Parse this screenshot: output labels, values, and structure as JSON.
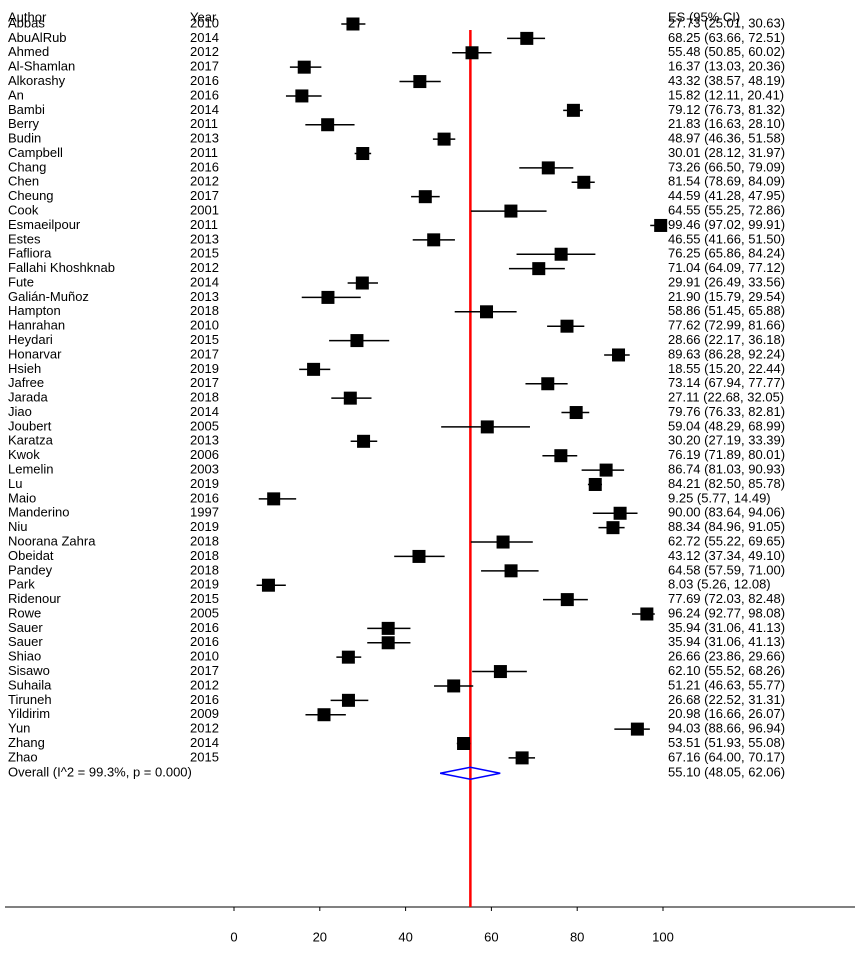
{
  "chart_data": {
    "type": "forest",
    "headers": {
      "author": "Author",
      "year": "Year",
      "es": "ES (95% CI)"
    },
    "categories": [
      "Abbas",
      "AbuAlRub",
      "Ahmed",
      "Al-Shamlan",
      "Alkorashy",
      "An",
      "Bambi",
      "Berry",
      "Budin",
      "Campbell",
      "Chang",
      "Chen",
      "Cheung",
      "Cook",
      "Esmaeilpour",
      "Estes",
      "Fafliora",
      "Fallahi Khoshknab",
      "Fute",
      "Galián-Muñoz",
      "Hampton",
      "Hanrahan",
      "Heydari",
      "Honarvar",
      "Hsieh",
      "Jafree",
      "Jarada",
      "Jiao",
      "Joubert",
      "Karatza",
      "Kwok",
      "Lemelin",
      "Lu",
      "Maio",
      "Manderino",
      "Niu",
      "Noorana Zahra",
      "Obeidat",
      "Pandey",
      "Park",
      "Ridenour",
      "Rowe",
      "Sauer",
      "Sauer",
      "Shiao",
      "Sisawo",
      "Suhaila",
      "Tiruneh",
      "Yildirim",
      "Yun",
      "Zhang",
      "Zhao"
    ],
    "years": [
      2010,
      2014,
      2012,
      2017,
      2016,
      2016,
      2014,
      2011,
      2013,
      2011,
      2016,
      2012,
      2017,
      2001,
      2011,
      2013,
      2015,
      2012,
      2014,
      2013,
      2018,
      2010,
      2015,
      2017,
      2019,
      2017,
      2018,
      2014,
      2005,
      2013,
      2006,
      2003,
      2019,
      2016,
      1997,
      2019,
      2018,
      2018,
      2018,
      2019,
      2015,
      2005,
      2016,
      2016,
      2010,
      2017,
      2012,
      2016,
      2009,
      2012,
      2014,
      2015
    ],
    "values": [
      27.73,
      68.25,
      55.48,
      16.37,
      43.32,
      15.82,
      79.12,
      21.83,
      48.97,
      30.01,
      73.26,
      81.54,
      44.59,
      64.55,
      99.46,
      46.55,
      76.25,
      71.04,
      29.91,
      21.9,
      58.86,
      77.62,
      28.66,
      89.63,
      18.55,
      73.14,
      27.11,
      79.76,
      59.04,
      30.2,
      76.19,
      86.74,
      84.21,
      9.25,
      90.0,
      88.34,
      62.72,
      43.12,
      64.58,
      8.03,
      77.69,
      96.24,
      35.94,
      35.94,
      26.66,
      62.1,
      51.21,
      26.68,
      20.98,
      94.03,
      53.51,
      67.16
    ],
    "lower": [
      25.01,
      63.66,
      50.85,
      13.03,
      38.57,
      12.11,
      76.73,
      16.63,
      46.36,
      28.12,
      66.5,
      78.69,
      41.28,
      55.25,
      97.02,
      41.66,
      65.86,
      64.09,
      26.49,
      15.79,
      51.45,
      72.99,
      22.17,
      86.28,
      15.2,
      67.94,
      22.68,
      76.33,
      48.29,
      27.19,
      71.89,
      81.03,
      82.5,
      5.77,
      83.64,
      84.96,
      55.22,
      37.34,
      57.59,
      5.26,
      72.03,
      92.77,
      31.06,
      31.06,
      23.86,
      55.52,
      46.63,
      22.52,
      16.66,
      88.66,
      51.93,
      64.0
    ],
    "upper": [
      30.63,
      72.51,
      60.02,
      20.36,
      48.19,
      20.41,
      81.32,
      28.1,
      51.58,
      31.97,
      79.09,
      84.09,
      47.95,
      72.86,
      99.91,
      51.5,
      84.24,
      77.12,
      33.56,
      29.54,
      65.88,
      81.66,
      36.18,
      92.24,
      22.44,
      77.77,
      32.05,
      82.81,
      68.99,
      33.39,
      80.01,
      90.93,
      85.78,
      14.49,
      94.06,
      91.05,
      69.65,
      49.1,
      71.0,
      12.08,
      82.48,
      98.08,
      41.13,
      41.13,
      29.66,
      68.26,
      55.77,
      31.31,
      26.07,
      96.94,
      55.08,
      70.17
    ],
    "value_labels": [
      "27.73 (25.01, 30.63)",
      "68.25 (63.66, 72.51)",
      "55.48 (50.85, 60.02)",
      "16.37 (13.03, 20.36)",
      "43.32 (38.57, 48.19)",
      "15.82 (12.11, 20.41)",
      "79.12 (76.73, 81.32)",
      "21.83 (16.63, 28.10)",
      "48.97 (46.36, 51.58)",
      "30.01 (28.12, 31.97)",
      "73.26 (66.50, 79.09)",
      "81.54 (78.69, 84.09)",
      "44.59 (41.28, 47.95)",
      "64.55 (55.25, 72.86)",
      "99.46 (97.02, 99.91)",
      "46.55 (41.66, 51.50)",
      "76.25 (65.86, 84.24)",
      "71.04 (64.09, 77.12)",
      "29.91 (26.49, 33.56)",
      "21.90 (15.79, 29.54)",
      "58.86 (51.45, 65.88)",
      "77.62 (72.99, 81.66)",
      "28.66 (22.17, 36.18)",
      "89.63 (86.28, 92.24)",
      "18.55 (15.20, 22.44)",
      "73.14 (67.94, 77.77)",
      "27.11 (22.68, 32.05)",
      "79.76 (76.33, 82.81)",
      "59.04 (48.29, 68.99)",
      "30.20 (27.19, 33.39)",
      "76.19 (71.89, 80.01)",
      "86.74 (81.03, 90.93)",
      "84.21 (82.50, 85.78)",
      "9.25 (5.77, 14.49)",
      "90.00 (83.64, 94.06)",
      "88.34 (84.96, 91.05)",
      "62.72 (55.22, 69.65)",
      "43.12 (37.34, 49.10)",
      "64.58 (57.59, 71.00)",
      "8.03 (5.26, 12.08)",
      "77.69 (72.03, 82.48)",
      "96.24 (92.77, 98.08)",
      "35.94 (31.06, 41.13)",
      "35.94 (31.06, 41.13)",
      "26.66 (23.86, 29.66)",
      "62.10 (55.52, 68.26)",
      "51.21 (46.63, 55.77)",
      "26.68 (22.52, 31.31)",
      "20.98 (16.66, 26.07)",
      "94.03 (88.66, 96.94)",
      "53.51 (51.93, 55.08)",
      "67.16 (64.00, 70.17)"
    ],
    "overall": {
      "label": "Overall  (I^2 = 99.3%, p = 0.000)",
      "value": 55.1,
      "lower": 48.05,
      "upper": 62.06,
      "value_label": "55.10 (48.05, 62.06)"
    },
    "color": "#000000",
    "overall_color": "#0000ff",
    "reference_color": "#ff0000",
    "xlim": [
      0,
      100
    ],
    "xticks": [
      0,
      20,
      40,
      60,
      80,
      100
    ]
  }
}
